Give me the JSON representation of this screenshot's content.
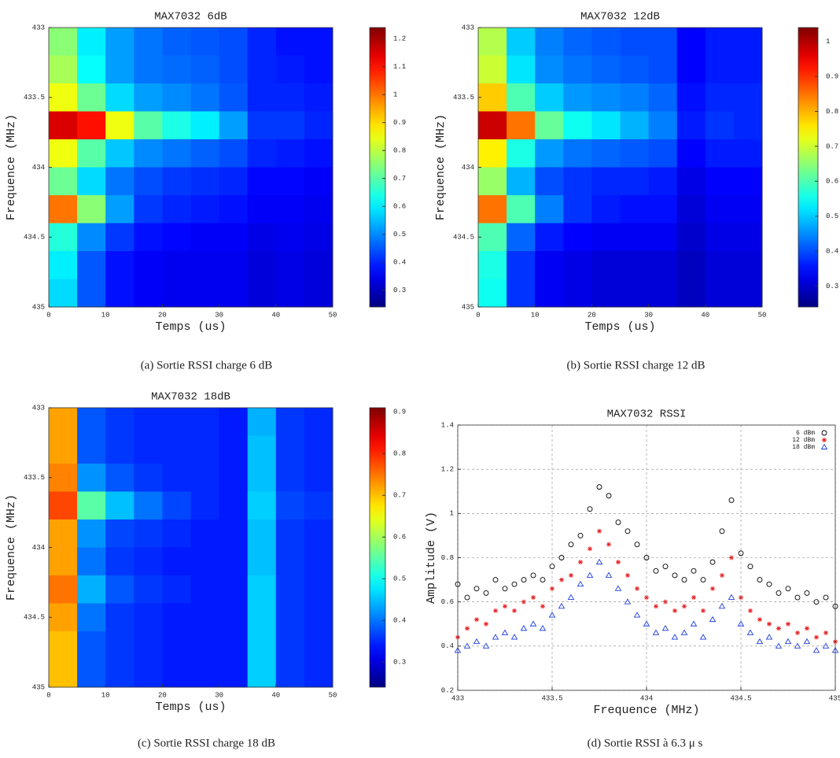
{
  "chart_data": [
    {
      "type": "heatmap",
      "title": "MAX7032 6dB",
      "xlabel": "Temps (us)",
      "ylabel": "Frequence (MHz)",
      "caption": "(a) Sortie RSSI charge 6 dB",
      "colormap": "jet",
      "x_edges": [
        0,
        5,
        10,
        15,
        20,
        25,
        30,
        35,
        40,
        45,
        50
      ],
      "y_edges": [
        433,
        433.2,
        433.4,
        433.6,
        433.8,
        434,
        434.2,
        434.4,
        434.6,
        434.8,
        435
      ],
      "xlim": [
        0,
        50
      ],
      "ylim": [
        435,
        433
      ],
      "xticks": [
        0,
        10,
        20,
        30,
        40,
        50
      ],
      "yticks": [
        433,
        433.5,
        434,
        434.5,
        435
      ],
      "zlim": [
        0.24,
        1.24
      ],
      "zticks": [
        0.3,
        0.4,
        0.5,
        0.6,
        0.7,
        0.8,
        0.9,
        1,
        1.1,
        1.2
      ],
      "values": [
        [
          0.75,
          0.6,
          0.52,
          0.48,
          0.46,
          0.45,
          0.44,
          0.4,
          0.38,
          0.38
        ],
        [
          0.78,
          0.62,
          0.52,
          0.48,
          0.47,
          0.46,
          0.44,
          0.4,
          0.39,
          0.38
        ],
        [
          0.85,
          0.72,
          0.58,
          0.52,
          0.5,
          0.48,
          0.45,
          0.4,
          0.4,
          0.39
        ],
        [
          1.15,
          1.1,
          0.85,
          0.7,
          0.64,
          0.6,
          0.52,
          0.42,
          0.42,
          0.4
        ],
        [
          0.85,
          0.7,
          0.56,
          0.5,
          0.48,
          0.46,
          0.44,
          0.4,
          0.39,
          0.38
        ],
        [
          0.72,
          0.58,
          0.48,
          0.44,
          0.42,
          0.41,
          0.4,
          0.37,
          0.37,
          0.36
        ],
        [
          1.0,
          0.75,
          0.52,
          0.42,
          0.4,
          0.39,
          0.38,
          0.36,
          0.36,
          0.35
        ],
        [
          0.65,
          0.5,
          0.42,
          0.38,
          0.37,
          0.36,
          0.36,
          0.34,
          0.35,
          0.34
        ],
        [
          0.6,
          0.45,
          0.38,
          0.36,
          0.35,
          0.35,
          0.35,
          0.33,
          0.34,
          0.33
        ],
        [
          0.58,
          0.45,
          0.38,
          0.36,
          0.35,
          0.35,
          0.35,
          0.33,
          0.34,
          0.33
        ]
      ]
    },
    {
      "type": "heatmap",
      "title": "MAX7032 12dB",
      "xlabel": "Temps (us)",
      "ylabel": "Frequence (MHz)",
      "caption": "(b) Sortie RSSI charge 12 dB",
      "colormap": "jet",
      "x_edges": [
        0,
        5,
        10,
        15,
        20,
        25,
        30,
        35,
        40,
        45,
        50
      ],
      "y_edges": [
        433,
        433.2,
        433.4,
        433.6,
        433.8,
        434,
        434.2,
        434.4,
        434.6,
        434.8,
        435
      ],
      "xlim": [
        0,
        50
      ],
      "ylim": [
        435,
        433
      ],
      "xticks": [
        0,
        10,
        20,
        30,
        40,
        50
      ],
      "yticks": [
        433,
        433.5,
        434,
        434.5,
        435
      ],
      "zlim": [
        0.24,
        1.04
      ],
      "zticks": [
        0.3,
        0.4,
        0.5,
        0.6,
        0.7,
        0.8,
        0.9,
        1
      ],
      "values": [
        [
          0.68,
          0.5,
          0.44,
          0.42,
          0.41,
          0.4,
          0.4,
          0.34,
          0.36,
          0.36
        ],
        [
          0.7,
          0.52,
          0.45,
          0.43,
          0.42,
          0.41,
          0.4,
          0.34,
          0.36,
          0.36
        ],
        [
          0.78,
          0.6,
          0.5,
          0.46,
          0.45,
          0.44,
          0.42,
          0.35,
          0.37,
          0.37
        ],
        [
          0.98,
          0.85,
          0.62,
          0.55,
          0.52,
          0.48,
          0.44,
          0.36,
          0.38,
          0.37
        ],
        [
          0.75,
          0.56,
          0.46,
          0.43,
          0.42,
          0.41,
          0.4,
          0.34,
          0.36,
          0.36
        ],
        [
          0.66,
          0.48,
          0.4,
          0.38,
          0.37,
          0.37,
          0.36,
          0.32,
          0.34,
          0.34
        ],
        [
          0.85,
          0.6,
          0.44,
          0.38,
          0.36,
          0.35,
          0.35,
          0.31,
          0.33,
          0.33
        ],
        [
          0.6,
          0.42,
          0.36,
          0.34,
          0.33,
          0.33,
          0.33,
          0.3,
          0.32,
          0.32
        ],
        [
          0.56,
          0.38,
          0.33,
          0.32,
          0.31,
          0.31,
          0.31,
          0.29,
          0.31,
          0.31
        ],
        [
          0.55,
          0.38,
          0.33,
          0.32,
          0.31,
          0.31,
          0.31,
          0.29,
          0.31,
          0.31
        ]
      ]
    },
    {
      "type": "heatmap",
      "title": "MAX7032 18dB",
      "xlabel": "Temps (us)",
      "ylabel": "Frequence (MHz)",
      "caption": "(c) Sortie RSSI charge 18 dB",
      "colormap": "jet",
      "x_edges": [
        0,
        5,
        10,
        15,
        20,
        25,
        30,
        35,
        40,
        45,
        50
      ],
      "y_edges": [
        433,
        433.2,
        433.4,
        433.6,
        433.8,
        434,
        434.2,
        434.4,
        434.6,
        434.8,
        435
      ],
      "xlim": [
        0,
        50
      ],
      "ylim": [
        435,
        433
      ],
      "xticks": [
        0,
        10,
        20,
        30,
        40,
        50
      ],
      "yticks": [
        433,
        433.5,
        434,
        434.5,
        435
      ],
      "zlim": [
        0.24,
        0.91
      ],
      "zticks": [
        0.3,
        0.4,
        0.5,
        0.6,
        0.7,
        0.8,
        0.9
      ],
      "values": [
        [
          0.72,
          0.38,
          0.36,
          0.35,
          0.35,
          0.35,
          0.34,
          0.44,
          0.36,
          0.35
        ],
        [
          0.72,
          0.38,
          0.36,
          0.35,
          0.35,
          0.35,
          0.34,
          0.45,
          0.36,
          0.35
        ],
        [
          0.74,
          0.42,
          0.38,
          0.36,
          0.35,
          0.35,
          0.34,
          0.45,
          0.36,
          0.35
        ],
        [
          0.78,
          0.55,
          0.45,
          0.4,
          0.37,
          0.35,
          0.34,
          0.46,
          0.37,
          0.36
        ],
        [
          0.72,
          0.42,
          0.37,
          0.36,
          0.35,
          0.34,
          0.34,
          0.45,
          0.36,
          0.35
        ],
        [
          0.72,
          0.4,
          0.36,
          0.35,
          0.34,
          0.34,
          0.34,
          0.45,
          0.36,
          0.35
        ],
        [
          0.75,
          0.44,
          0.38,
          0.36,
          0.35,
          0.34,
          0.34,
          0.46,
          0.36,
          0.35
        ],
        [
          0.72,
          0.4,
          0.36,
          0.35,
          0.34,
          0.34,
          0.34,
          0.46,
          0.36,
          0.35
        ],
        [
          0.7,
          0.38,
          0.36,
          0.35,
          0.34,
          0.34,
          0.34,
          0.46,
          0.36,
          0.35
        ],
        [
          0.7,
          0.38,
          0.36,
          0.35,
          0.34,
          0.34,
          0.34,
          0.46,
          0.36,
          0.35
        ]
      ]
    },
    {
      "type": "scatter",
      "title": "MAX7032 RSSI",
      "xlabel": "Frequence (MHz)",
      "ylabel": "Amplitude (V)",
      "caption": "(d) Sortie RSSI à 6.3 μ s",
      "grid": true,
      "legend": "top-right",
      "xlim": [
        433,
        435
      ],
      "ylim": [
        0.2,
        1.4
      ],
      "xticks": [
        433,
        433.5,
        434,
        434.5,
        435
      ],
      "yticks": [
        0.2,
        0.4,
        0.6,
        0.8,
        1,
        1.2,
        1.4
      ],
      "x": [
        433,
        433.05,
        433.1,
        433.15,
        433.2,
        433.25,
        433.3,
        433.35,
        433.4,
        433.45,
        433.5,
        433.55,
        433.6,
        433.65,
        433.7,
        433.75,
        433.8,
        433.85,
        433.9,
        433.95,
        434,
        434.05,
        434.1,
        434.15,
        434.2,
        434.25,
        434.3,
        434.35,
        434.4,
        434.45,
        434.5,
        434.55,
        434.6,
        434.65,
        434.7,
        434.75,
        434.8,
        434.85,
        434.9,
        434.95,
        435
      ],
      "series": [
        {
          "name": "6 dBm",
          "color": "#000000",
          "marker": "circle",
          "values": [
            0.68,
            0.62,
            0.66,
            0.64,
            0.7,
            0.66,
            0.68,
            0.7,
            0.72,
            0.7,
            0.76,
            0.8,
            0.86,
            0.9,
            1.02,
            1.12,
            1.08,
            0.96,
            0.92,
            0.86,
            0.8,
            0.74,
            0.76,
            0.72,
            0.7,
            0.74,
            0.7,
            0.78,
            0.92,
            1.06,
            0.82,
            0.76,
            0.7,
            0.68,
            0.64,
            0.66,
            0.62,
            0.64,
            0.6,
            0.62,
            0.58
          ]
        },
        {
          "name": "12 dBm",
          "color": "#e8191c",
          "marker": "star",
          "values": [
            0.44,
            0.48,
            0.52,
            0.5,
            0.56,
            0.58,
            0.56,
            0.6,
            0.62,
            0.58,
            0.66,
            0.7,
            0.72,
            0.78,
            0.84,
            0.92,
            0.86,
            0.78,
            0.72,
            0.66,
            0.62,
            0.58,
            0.6,
            0.56,
            0.58,
            0.62,
            0.56,
            0.66,
            0.72,
            0.8,
            0.62,
            0.56,
            0.52,
            0.5,
            0.48,
            0.5,
            0.46,
            0.48,
            0.44,
            0.46,
            0.42
          ]
        },
        {
          "name": "18 dBm",
          "color": "#1f3fe0",
          "marker": "triangle",
          "values": [
            0.38,
            0.4,
            0.42,
            0.4,
            0.44,
            0.46,
            0.44,
            0.48,
            0.5,
            0.48,
            0.54,
            0.58,
            0.62,
            0.68,
            0.72,
            0.78,
            0.72,
            0.66,
            0.6,
            0.54,
            0.5,
            0.46,
            0.48,
            0.44,
            0.46,
            0.5,
            0.44,
            0.52,
            0.58,
            0.62,
            0.5,
            0.46,
            0.42,
            0.44,
            0.4,
            0.42,
            0.4,
            0.42,
            0.38,
            0.4,
            0.38
          ]
        }
      ]
    }
  ]
}
